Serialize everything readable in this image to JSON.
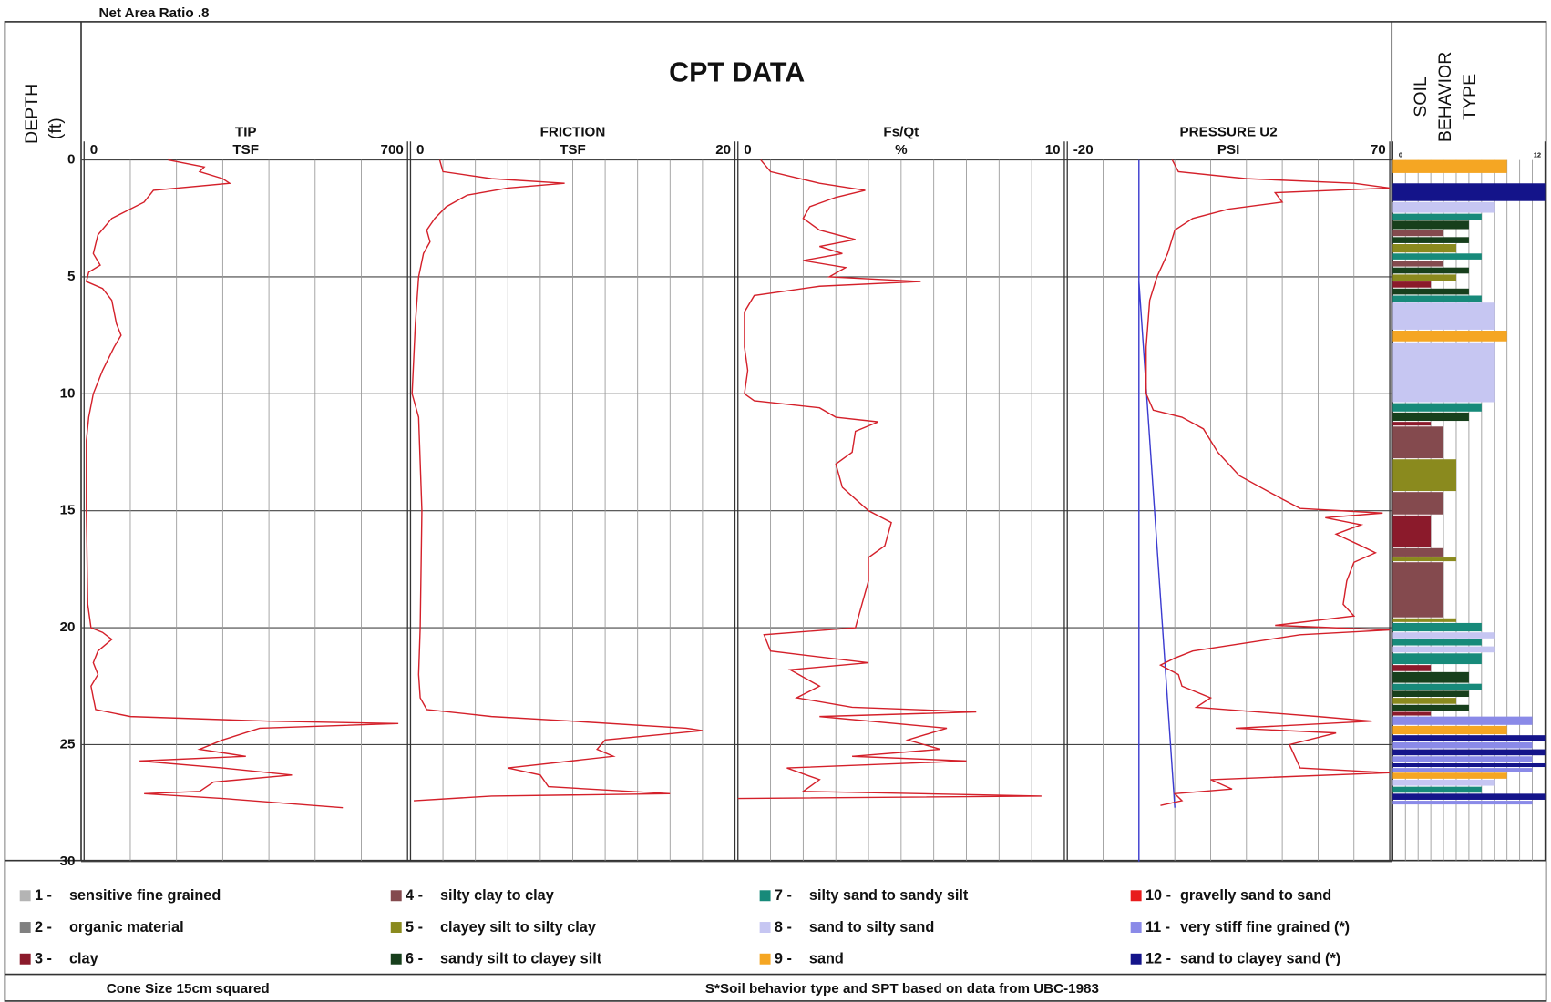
{
  "header": {
    "note": "Net Area Ratio .8",
    "title": "CPT DATA"
  },
  "depth_axis": {
    "label_lines": [
      "DEPTH",
      "(ft)"
    ],
    "ylim": [
      0,
      30
    ],
    "yticks": [
      0,
      5,
      10,
      15,
      20,
      25,
      30
    ]
  },
  "chart_data": [
    {
      "type": "line",
      "title": "TIP",
      "unit": "TSF",
      "xlim": [
        0,
        700
      ],
      "xticks": [
        0,
        700
      ],
      "xgrid": [
        100,
        200,
        300,
        400,
        500,
        600
      ],
      "series": [
        {
          "color": "#d4202a",
          "depth": [
            0,
            0.3,
            0.5,
            0.8,
            1.0,
            1.3,
            1.8,
            2.5,
            3.2,
            4,
            4.5,
            4.8,
            5.2,
            5.5,
            6,
            7,
            7.5,
            8,
            9,
            10,
            10.5,
            11,
            12,
            15,
            19,
            20,
            20.2,
            20.5,
            21,
            21.5,
            22,
            22.5,
            23,
            23.5,
            23.8,
            24,
            24.1,
            24.3,
            24.8,
            25.2,
            25.5,
            25.7,
            26,
            26.3,
            26.6,
            27,
            27.1,
            27.3,
            27.7
          ],
          "values": [
            182,
            260,
            250,
            300,
            315,
            150,
            130,
            60,
            30,
            20,
            35,
            10,
            5,
            40,
            60,
            70,
            80,
            65,
            40,
            20,
            15,
            10,
            5,
            5,
            8,
            15,
            40,
            60,
            30,
            20,
            30,
            15,
            20,
            25,
            100,
            400,
            680,
            380,
            300,
            250,
            350,
            120,
            300,
            450,
            280,
            250,
            130,
            300,
            560
          ]
        }
      ]
    },
    {
      "type": "line",
      "title": "FRICTION",
      "unit": "TSF",
      "xlim": [
        0,
        20
      ],
      "xticks": [
        0,
        20
      ],
      "xgrid": [
        2,
        4,
        6,
        8,
        10,
        12,
        14,
        16,
        18
      ],
      "series": [
        {
          "color": "#d4202a",
          "depth": [
            0,
            0.5,
            0.8,
            1.0,
            1.2,
            1.5,
            2,
            2.5,
            3,
            3.5,
            4,
            5,
            7,
            10,
            11,
            15,
            20,
            22,
            23,
            23.5,
            23.8,
            24,
            24.3,
            24.4,
            24.8,
            25.2,
            25.5,
            26,
            26.3,
            26.8,
            27.1,
            27.2,
            27.4
          ],
          "values": [
            1.8,
            2,
            5,
            9.5,
            6,
            3.5,
            2.2,
            1.5,
            1.0,
            1.2,
            0.8,
            0.5,
            0.3,
            0.1,
            0.5,
            0.7,
            0.6,
            0.5,
            0.6,
            1,
            5,
            10,
            17,
            18,
            12,
            11.5,
            12.5,
            6,
            8,
            8.5,
            16,
            5,
            0.2
          ]
        }
      ]
    },
    {
      "type": "line",
      "title": "Fs/Qt",
      "unit": "%",
      "xlim": [
        0,
        10
      ],
      "xticks": [
        0,
        10
      ],
      "xgrid": [
        1,
        2,
        3,
        4,
        5,
        6,
        7,
        8,
        9
      ],
      "series": [
        {
          "color": "#d4202a",
          "depth": [
            0,
            0.5,
            1,
            1.3,
            1.6,
            2,
            2.5,
            3,
            3.4,
            3.7,
            4,
            4.3,
            4.6,
            5,
            5.2,
            5.4,
            5.8,
            6.5,
            8,
            9,
            10,
            10.3,
            10.6,
            11,
            11.2,
            11.6,
            12.5,
            13,
            14,
            15,
            15.5,
            16.5,
            17,
            18,
            19,
            20,
            20.3,
            21,
            21.5,
            21.8,
            22.5,
            23,
            23.4,
            23.6,
            23.8,
            24.3,
            24.8,
            25.2,
            25.5,
            25.7,
            26.0,
            26.5,
            27.0,
            27.2,
            27.3
          ],
          "values": [
            0.7,
            1.0,
            2.5,
            3.9,
            3,
            2.2,
            2.0,
            2.5,
            3.6,
            2.5,
            3.2,
            2.0,
            3.3,
            2.8,
            5.6,
            2.5,
            0.5,
            0.2,
            0.2,
            0.3,
            0.2,
            0.5,
            2.5,
            3,
            4.3,
            3.6,
            3.5,
            3.0,
            3.2,
            4.0,
            4.7,
            4.5,
            4.0,
            4.0,
            3.8,
            3.6,
            0.8,
            1.0,
            4.0,
            1.6,
            2.5,
            1.8,
            3.5,
            7.3,
            2.5,
            6.4,
            5.2,
            6.2,
            3.5,
            7.0,
            1.5,
            2.5,
            2.0,
            9.3,
            0
          ]
        }
      ]
    },
    {
      "type": "line",
      "title": "PRESSURE U2",
      "unit": "PSI",
      "xlim": [
        -20,
        70
      ],
      "xticks": [
        -20,
        70
      ],
      "xgrid": [
        -10,
        0,
        10,
        20,
        30,
        40,
        50,
        60
      ],
      "series": [
        {
          "color": "#3b3bd0",
          "depth": [
            0,
            30
          ],
          "values": [
            0,
            0
          ]
        },
        {
          "color": "#3b3bd0",
          "depth": [
            5.2,
            27.7
          ],
          "values": [
            0,
            10
          ]
        },
        {
          "color": "#d4202a",
          "depth": [
            0,
            0.5,
            0.8,
            1.0,
            1.2,
            1.4,
            1.8,
            2.1,
            2.5,
            3,
            4,
            5,
            6,
            8,
            10,
            10.7,
            11,
            11.5,
            12.5,
            13.5,
            14.5,
            14.9,
            15.1,
            15.3,
            15.6,
            16,
            16.5,
            16.8,
            17.2,
            18,
            19,
            19.5,
            19.9,
            20.1,
            20.3,
            20.6,
            21,
            21.3,
            21.6,
            22,
            22.5,
            23,
            23.4,
            23.8,
            24.0,
            24.3,
            24.5,
            25,
            26,
            26.2,
            26.5,
            26.9,
            27.1,
            27.4,
            27.6
          ],
          "values": [
            9.3,
            11,
            30,
            60,
            70,
            38,
            40,
            25,
            15,
            10,
            8,
            5,
            3,
            2,
            2,
            4,
            12,
            18,
            22,
            28,
            40,
            45,
            68,
            52,
            62,
            55,
            62,
            66,
            60,
            58,
            57,
            60,
            38,
            70,
            45,
            32,
            15,
            10,
            6,
            11,
            12,
            20,
            16,
            50,
            65,
            27,
            55,
            42,
            45,
            70,
            20,
            26,
            10,
            12,
            6
          ]
        }
      ]
    },
    {
      "type": "bar",
      "title_lines": [
        "SOIL",
        "BEHAVIOR",
        "TYPE"
      ],
      "xlim": [
        0,
        12
      ],
      "xticks": [
        0,
        12
      ],
      "xgrid": [
        1,
        2,
        3,
        4,
        5,
        6,
        7,
        8,
        9,
        10,
        11
      ],
      "depth_bins": [
        0,
        0.6,
        1.0,
        1.8,
        2.3,
        2.6,
        3.0,
        3.3,
        3.6,
        4.0,
        4.3,
        4.6,
        4.9,
        5.2,
        5.5,
        5.8,
        6.1,
        7.3,
        7.8,
        10.4,
        10.8,
        11.2,
        11.4,
        12.8,
        14.2,
        15.2,
        16.6,
        17.0,
        17.2,
        19.6,
        19.8,
        20.2,
        20.5,
        20.8,
        21.1,
        21.6,
        21.9,
        22.4,
        22.7,
        23.0,
        23.3,
        23.6,
        23.8,
        24.2,
        24.6,
        24.9,
        25.2,
        25.5,
        25.8,
        26.0,
        26.2,
        26.5,
        26.8,
        27.1,
        27.4,
        27.6
      ],
      "values": [
        9,
        null,
        12,
        8,
        7,
        6,
        4,
        6,
        5,
        7,
        4,
        6,
        5,
        3,
        6,
        7,
        8,
        9,
        8,
        7,
        6,
        3,
        4,
        5,
        4,
        3,
        4,
        5,
        4,
        5,
        7,
        8,
        7,
        8,
        7,
        3,
        6,
        7,
        6,
        5,
        6,
        3,
        11,
        9,
        12,
        11,
        12,
        11,
        12,
        11,
        9,
        8,
        7,
        12,
        11
      ]
    }
  ],
  "legend": {
    "items": [
      {
        "number": "1 -",
        "label": "sensitive fine grained",
        "color": "#b4b4b4"
      },
      {
        "number": "2 -",
        "label": "organic material",
        "color": "#808080"
      },
      {
        "number": "3 -",
        "label": "clay",
        "color": "#8b1a2b"
      },
      {
        "number": "4 -",
        "label": "silty clay to clay",
        "color": "#844a4e"
      },
      {
        "number": "5 -",
        "label": "clayey silt to silty clay",
        "color": "#8a8a1e"
      },
      {
        "number": "6 -",
        "label": "sandy silt to clayey silt",
        "color": "#173f1c"
      },
      {
        "number": "7 -",
        "label": "silty sand to sandy silt",
        "color": "#178a7a"
      },
      {
        "number": "8 -",
        "label": "sand to silty sand",
        "color": "#c6c6f2"
      },
      {
        "number": "9 -",
        "label": "sand",
        "color": "#f5a623"
      },
      {
        "number": "10 -",
        "label": "gravelly sand to sand",
        "color": "#e81c1c"
      },
      {
        "number": "11 -",
        "label": "very stiff fine grained (*)",
        "color": "#8a8ae8"
      },
      {
        "number": "12 -",
        "label": "sand to clayey sand (*)",
        "color": "#14148a"
      }
    ]
  },
  "footer": {
    "left": "Cone Size 15cm squared",
    "right": "S*Soil behavior type and SPT based on data from UBC-1983"
  }
}
